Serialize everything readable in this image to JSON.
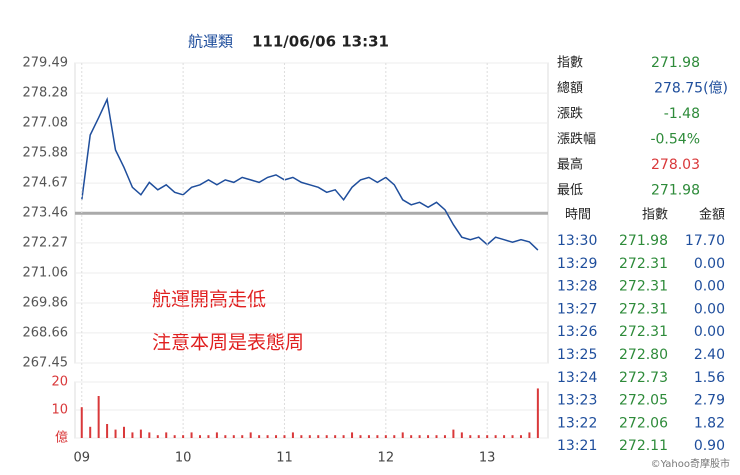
{
  "header": {
    "name": "航運類",
    "datetime": "111/06/06 13:31"
  },
  "chart_data": [
    {
      "type": "line",
      "color": "#1f4e9c",
      "x": [
        0,
        5,
        10,
        15,
        20,
        25,
        30,
        35,
        40,
        45,
        50,
        55,
        60,
        65,
        70,
        75,
        80,
        85,
        90,
        95,
        100,
        105,
        110,
        115,
        120,
        125,
        130,
        135,
        140,
        145,
        150,
        155,
        160,
        165,
        170,
        175,
        180,
        185,
        190,
        195,
        200,
        205,
        210,
        215,
        220,
        225,
        230,
        235,
        240,
        245,
        250,
        255,
        260,
        265,
        270
      ],
      "values": [
        274.0,
        276.6,
        277.3,
        278.03,
        276.0,
        275.3,
        274.5,
        274.2,
        274.7,
        274.4,
        274.6,
        274.3,
        274.2,
        274.5,
        274.6,
        274.8,
        274.6,
        274.8,
        274.7,
        274.9,
        274.8,
        274.7,
        274.9,
        275.0,
        274.8,
        274.9,
        274.7,
        274.6,
        274.5,
        274.3,
        274.4,
        274.0,
        274.5,
        274.8,
        274.9,
        274.7,
        274.9,
        274.6,
        274.0,
        273.8,
        273.9,
        273.7,
        273.9,
        273.6,
        273.0,
        272.5,
        272.4,
        272.5,
        272.2,
        272.5,
        272.4,
        272.3,
        272.4,
        272.31,
        271.98
      ],
      "xlim": [
        -4,
        276
      ],
      "ylim": [
        267.45,
        279.49
      ],
      "yticks": [
        279.49,
        278.28,
        277.08,
        275.88,
        274.67,
        273.46,
        272.27,
        271.06,
        269.86,
        268.66,
        267.45
      ],
      "reference_line": 273.46,
      "reference_color": "#aaaaaa",
      "grid": true
    },
    {
      "type": "bar",
      "color": "#d9383a",
      "x": [
        0,
        5,
        10,
        15,
        20,
        25,
        30,
        35,
        40,
        45,
        50,
        55,
        60,
        65,
        70,
        75,
        80,
        85,
        90,
        95,
        100,
        105,
        110,
        115,
        120,
        125,
        130,
        135,
        140,
        145,
        150,
        155,
        160,
        165,
        170,
        175,
        180,
        185,
        190,
        195,
        200,
        205,
        210,
        215,
        220,
        225,
        230,
        235,
        240,
        245,
        250,
        255,
        260,
        265,
        270
      ],
      "values": [
        11,
        4,
        15,
        5,
        3,
        4,
        2,
        3,
        2,
        1,
        2,
        1,
        1,
        2,
        1,
        1,
        2,
        1,
        1,
        1,
        2,
        1,
        1,
        1,
        1,
        2,
        1,
        1,
        1,
        1,
        1,
        1,
        2,
        1,
        1,
        1,
        1,
        1,
        2,
        1,
        1,
        1,
        1,
        1,
        3,
        2,
        1,
        1,
        1,
        1,
        1,
        1,
        1,
        2,
        17.7
      ],
      "xlim": [
        -4,
        276
      ],
      "ylim": [
        0,
        20
      ],
      "yticks": [
        {
          "value": 0,
          "label": "億"
        },
        10,
        20
      ],
      "xticks": [
        {
          "value": 0,
          "label": "09"
        },
        {
          "value": 60,
          "label": "10"
        },
        {
          "value": 120,
          "label": "11"
        },
        {
          "value": 180,
          "label": "12"
        },
        {
          "value": 240,
          "label": "13"
        }
      ],
      "grid": true
    }
  ],
  "annotations": [
    "航運開高走低",
    "注意本周是表態周"
  ],
  "quote": [
    {
      "label": "指數",
      "value": "271.98",
      "color": "#2e8b3a"
    },
    {
      "label": "總額",
      "value": "278.75(億)",
      "color": "#1f4e9c"
    },
    {
      "label": "漲跌",
      "value": "-1.48",
      "color": "#2e8b3a"
    },
    {
      "label": "漲跌幅",
      "value": "-0.54%",
      "color": "#2e8b3a"
    },
    {
      "label": "最高",
      "value": "278.03",
      "color": "#d9383a"
    },
    {
      "label": "最低",
      "value": "271.98",
      "color": "#2e8b3a"
    }
  ],
  "trades": {
    "columns": [
      "時間",
      "指數",
      "金額"
    ],
    "rows": [
      [
        "13:30",
        "271.98",
        "17.70"
      ],
      [
        "13:29",
        "272.31",
        "0.00"
      ],
      [
        "13:28",
        "272.31",
        "0.00"
      ],
      [
        "13:27",
        "272.31",
        "0.00"
      ],
      [
        "13:26",
        "272.31",
        "0.00"
      ],
      [
        "13:25",
        "272.80",
        "2.40"
      ],
      [
        "13:24",
        "272.73",
        "1.56"
      ],
      [
        "13:23",
        "272.05",
        "2.79"
      ],
      [
        "13:22",
        "272.06",
        "1.82"
      ],
      [
        "13:21",
        "272.11",
        "0.90"
      ]
    ]
  },
  "footer": "©Yahoo奇摩股市"
}
